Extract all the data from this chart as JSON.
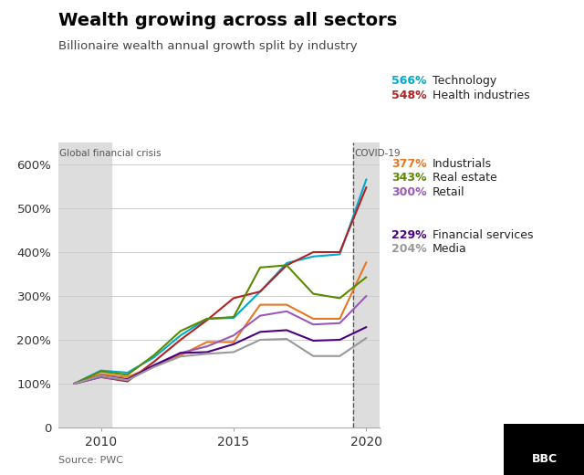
{
  "title": "Wealth growing across all sectors",
  "subtitle": "Billionaire wealth annual growth split by industry",
  "source": "Source: PWC",
  "years": [
    2009,
    2010,
    2011,
    2012,
    2013,
    2014,
    2015,
    2016,
    2017,
    2018,
    2019,
    2020
  ],
  "series": [
    {
      "name": "Technology",
      "color": "#00AACC",
      "end_pct": "566%",
      "values": [
        100,
        130,
        125,
        160,
        210,
        248,
        250,
        310,
        375,
        390,
        395,
        566
      ]
    },
    {
      "name": "Health industries",
      "color": "#B22222",
      "end_pct": "548%",
      "values": [
        100,
        115,
        105,
        150,
        200,
        245,
        295,
        310,
        370,
        400,
        400,
        548
      ]
    },
    {
      "name": "Industrials",
      "color": "#E87722",
      "end_pct": "377%",
      "values": [
        100,
        122,
        115,
        140,
        165,
        195,
        195,
        280,
        280,
        248,
        248,
        377
      ]
    },
    {
      "name": "Real estate",
      "color": "#5A8A00",
      "end_pct": "343%",
      "values": [
        100,
        128,
        120,
        165,
        220,
        248,
        252,
        365,
        370,
        305,
        295,
        343
      ]
    },
    {
      "name": "Retail",
      "color": "#9B59B6",
      "end_pct": "300%",
      "values": [
        100,
        115,
        108,
        140,
        170,
        185,
        210,
        255,
        265,
        235,
        238,
        300
      ]
    },
    {
      "name": "Financial services",
      "color": "#4B0082",
      "end_pct": "229%",
      "values": [
        100,
        118,
        110,
        142,
        170,
        172,
        190,
        218,
        222,
        198,
        200,
        229
      ]
    },
    {
      "name": "Media",
      "color": "#999999",
      "end_pct": "204%",
      "values": [
        100,
        118,
        108,
        138,
        162,
        168,
        172,
        200,
        202,
        163,
        163,
        204
      ]
    }
  ],
  "gfc_shade_x0": 2008.4,
  "gfc_shade_x1": 2010.4,
  "covid_shade_x0": 2019.5,
  "covid_shade_x1": 2020.5,
  "covid_line_x": 2019.5,
  "gfc_label": "Global financial crisis",
  "covid_label": "COVID-19",
  "xlim": [
    2008.4,
    2020.5
  ],
  "ylim": [
    0,
    650
  ],
  "yticks": [
    0,
    100,
    200,
    300,
    400,
    500,
    600
  ],
  "xticks": [
    2010,
    2015,
    2020
  ],
  "shade_color": "#DDDDDD",
  "grid_color": "#CCCCCC",
  "spine_color": "#AAAAAA",
  "title_color": "#000000",
  "subtitle_color": "#444444",
  "label_color": "#555555",
  "source_text": "Source: PWC",
  "bbc_text": "BBC",
  "background_color": "#FFFFFF"
}
